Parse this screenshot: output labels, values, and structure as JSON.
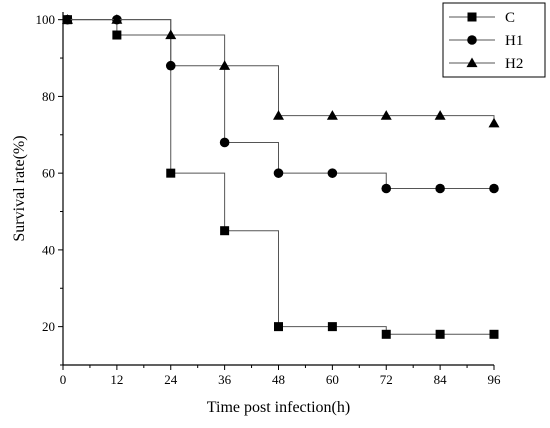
{
  "chart_data": {
    "type": "line",
    "step": true,
    "xlabel": "Time post infection(h)",
    "ylabel": "Survival rate(%)",
    "xlim": [
      0,
      96
    ],
    "ylim": [
      10,
      102
    ],
    "xticks": [
      0,
      12,
      24,
      36,
      48,
      60,
      72,
      84,
      96
    ],
    "yticks": [
      20,
      40,
      60,
      80,
      100
    ],
    "grid": false,
    "legend_position": "top-right",
    "series": [
      {
        "name": "C",
        "marker": "square",
        "x": [
          1,
          12,
          24,
          36,
          48,
          60,
          72,
          84,
          96
        ],
        "y": [
          100,
          96,
          60,
          45,
          20,
          20,
          18,
          18,
          18
        ]
      },
      {
        "name": "H1",
        "marker": "circle",
        "x": [
          1,
          12,
          24,
          36,
          48,
          60,
          72,
          84,
          96
        ],
        "y": [
          100,
          100,
          88,
          68,
          60,
          60,
          56,
          56,
          56
        ]
      },
      {
        "name": "H2",
        "marker": "triangle",
        "x": [
          1,
          12,
          24,
          36,
          48,
          60,
          72,
          84,
          96
        ],
        "y": [
          100,
          100,
          96,
          88,
          75,
          75,
          75,
          75,
          73
        ]
      }
    ]
  }
}
